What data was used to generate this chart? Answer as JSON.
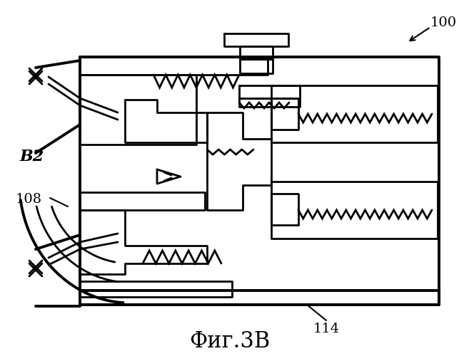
{
  "title": "Фиг.3В",
  "label_100": "100",
  "label_114": "114",
  "label_B2": "B2",
  "label_108": "108",
  "bg_color": "#ffffff",
  "line_color": "#000000",
  "lw_thick": 2.8,
  "lw_med": 2.0,
  "lw_thin": 1.5,
  "fig_width": 6.43,
  "fig_height": 5.0,
  "dpi": 100,
  "title_fontsize": 22,
  "label_fontsize": 14
}
